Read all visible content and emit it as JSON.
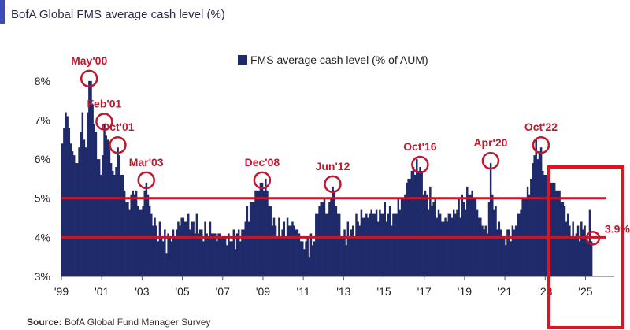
{
  "chart_data": {
    "type": "bar",
    "title": "BofA Global FMS average cash level (%)",
    "legend": "FMS average cash level (% of AUM)",
    "source_label": "Source:",
    "source_text": " BofA Global Fund Manager Survey",
    "xlabel": "",
    "ylabel": "",
    "ylim": [
      3,
      8.4
    ],
    "yticks": [
      "3%",
      "4%",
      "5%",
      "6%",
      "7%",
      "8%"
    ],
    "ytick_values": [
      3,
      4,
      5,
      6,
      7,
      8
    ],
    "xticks": [
      "'99",
      "'01",
      "'03",
      "'05",
      "'07",
      "'09",
      "'11",
      "'13",
      "'15",
      "'17",
      "'19",
      "'21",
      "'23",
      "'25"
    ],
    "xtick_years": [
      1999,
      2001,
      2003,
      2005,
      2007,
      2009,
      2011,
      2013,
      2015,
      2017,
      2019,
      2021,
      2023,
      2025
    ],
    "start": "1999-01",
    "end": "2025-04",
    "reference_lines": [
      4.0,
      5.0
    ],
    "bar_color": "#1f2a6b",
    "highlight_color": "#c0182d",
    "anchors": [
      [
        "1999-01",
        6.4
      ],
      [
        "1999-03",
        7.2
      ],
      [
        "1999-05",
        6.8
      ],
      [
        "1999-07",
        6.2
      ],
      [
        "1999-10",
        5.9
      ],
      [
        "2000-01",
        7.2
      ],
      [
        "2000-03",
        6.3
      ],
      [
        "2000-05",
        8.0
      ],
      [
        "2000-07",
        7.4
      ],
      [
        "2000-10",
        6.0
      ],
      [
        "2000-12",
        5.6
      ],
      [
        "2001-02",
        6.9
      ],
      [
        "2001-04",
        6.5
      ],
      [
        "2001-06",
        5.9
      ],
      [
        "2001-08",
        5.6
      ],
      [
        "2001-10",
        6.3
      ],
      [
        "2001-12",
        5.6
      ],
      [
        "2002-04",
        4.9
      ],
      [
        "2002-08",
        5.1
      ],
      [
        "2002-12",
        4.7
      ],
      [
        "2003-03",
        5.4
      ],
      [
        "2003-06",
        4.6
      ],
      [
        "2003-09",
        4.3
      ],
      [
        "2003-12",
        4.0
      ],
      [
        "2004-06",
        3.9
      ],
      [
        "2004-12",
        4.5
      ],
      [
        "2005-06",
        4.4
      ],
      [
        "2005-12",
        4.2
      ],
      [
        "2006-06",
        4.1
      ],
      [
        "2006-12",
        4.0
      ],
      [
        "2007-06",
        3.9
      ],
      [
        "2007-12",
        4.2
      ],
      [
        "2008-06",
        4.9
      ],
      [
        "2008-12",
        5.4
      ],
      [
        "2009-03",
        5.2
      ],
      [
        "2009-06",
        4.3
      ],
      [
        "2009-12",
        4.2
      ],
      [
        "2010-06",
        4.4
      ],
      [
        "2010-12",
        3.9
      ],
      [
        "2011-06",
        3.8
      ],
      [
        "2011-09",
        4.6
      ],
      [
        "2011-12",
        4.9
      ],
      [
        "2012-03",
        4.6
      ],
      [
        "2012-06",
        5.3
      ],
      [
        "2012-09",
        4.6
      ],
      [
        "2012-12",
        4.0
      ],
      [
        "2013-06",
        4.3
      ],
      [
        "2013-12",
        4.5
      ],
      [
        "2014-06",
        4.6
      ],
      [
        "2014-12",
        4.6
      ],
      [
        "2015-06",
        4.6
      ],
      [
        "2015-12",
        5.0
      ],
      [
        "2016-03",
        5.5
      ],
      [
        "2016-06",
        5.8
      ],
      [
        "2016-10",
        5.8
      ],
      [
        "2016-12",
        5.1
      ],
      [
        "2017-06",
        4.9
      ],
      [
        "2017-12",
        4.4
      ],
      [
        "2018-06",
        4.7
      ],
      [
        "2018-12",
        4.9
      ],
      [
        "2019-03",
        5.1
      ],
      [
        "2019-06",
        5.0
      ],
      [
        "2019-12",
        4.2
      ],
      [
        "2020-02",
        4.1
      ],
      [
        "2020-04",
        5.9
      ],
      [
        "2020-06",
        4.7
      ],
      [
        "2020-09",
        4.4
      ],
      [
        "2020-12",
        4.0
      ],
      [
        "2021-06",
        4.2
      ],
      [
        "2021-12",
        5.0
      ],
      [
        "2022-03",
        5.1
      ],
      [
        "2022-06",
        6.1
      ],
      [
        "2022-10",
        6.3
      ],
      [
        "2022-12",
        5.6
      ],
      [
        "2023-06",
        5.4
      ],
      [
        "2023-12",
        4.8
      ],
      [
        "2024-03",
        4.3
      ],
      [
        "2024-06",
        4.0
      ],
      [
        "2024-12",
        4.3
      ],
      [
        "2025-01",
        4.0
      ],
      [
        "2025-02",
        3.9
      ],
      [
        "2025-03",
        4.7
      ],
      [
        "2025-04",
        3.9
      ]
    ],
    "annotations": [
      {
        "label": "May'00",
        "date": "2000-05",
        "value": 8.0
      },
      {
        "label": "Feb'01",
        "date": "2001-02",
        "value": 6.9
      },
      {
        "label": "Oct'01",
        "date": "2001-10",
        "value": 6.3
      },
      {
        "label": "Mar'03",
        "date": "2003-03",
        "value": 5.4
      },
      {
        "label": "Dec'08",
        "date": "2008-12",
        "value": 5.4
      },
      {
        "label": "Jun'12",
        "date": "2012-06",
        "value": 5.3
      },
      {
        "label": "Oct'16",
        "date": "2016-10",
        "value": 5.8
      },
      {
        "label": "Apr'20",
        "date": "2020-04",
        "value": 5.9
      },
      {
        "label": "Oct'22",
        "date": "2022-10",
        "value": 6.3
      }
    ],
    "latest": {
      "label": "3.9%",
      "date": "2025-04",
      "value": 3.9
    },
    "grid": false,
    "legend_position": "top-center"
  }
}
